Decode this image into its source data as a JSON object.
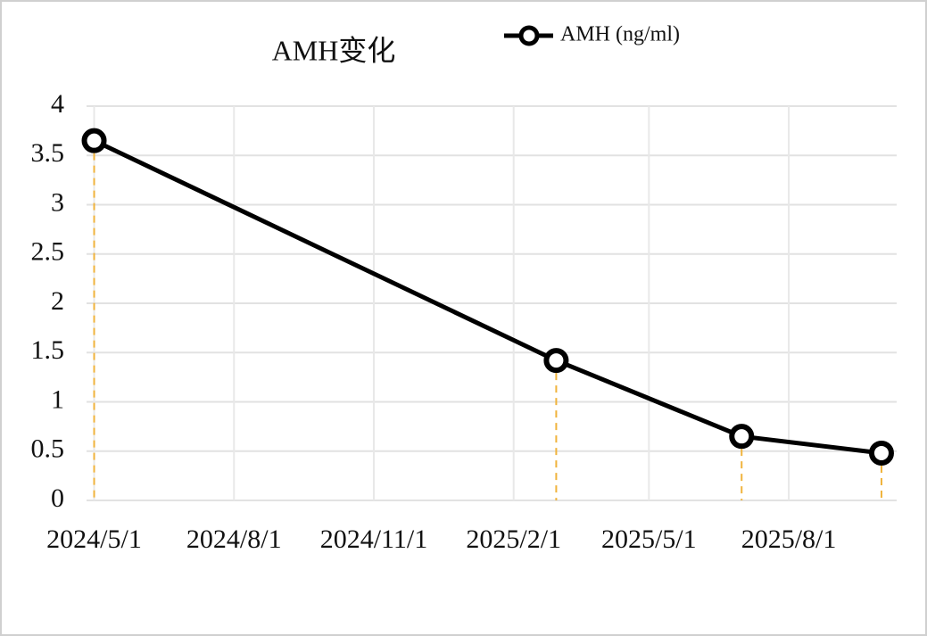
{
  "chart_data": {
    "type": "line",
    "title": "AMH变化",
    "x": [
      "2024/5/1",
      "2025/3/1",
      "2025/7/1",
      "2025/10/1"
    ],
    "series": [
      {
        "name": "AMH (ng/ml)",
        "color": "#000000",
        "values": [
          3.65,
          1.42,
          0.65,
          0.48
        ]
      }
    ],
    "xlim": [
      "2024/4/26",
      "2025/10/11"
    ],
    "xticks": [
      "2024/5/1",
      "2024/8/1",
      "2024/11/1",
      "2025/2/1",
      "2025/5/1",
      "2025/8/1"
    ],
    "ylim": [
      0,
      4
    ],
    "yticks": [
      0,
      0.5,
      1,
      1.5,
      2,
      2.5,
      3,
      3.5,
      4
    ],
    "grid": true,
    "drop_lines": true,
    "drop_line_color": "#f0b33c",
    "legend": "upper center"
  }
}
